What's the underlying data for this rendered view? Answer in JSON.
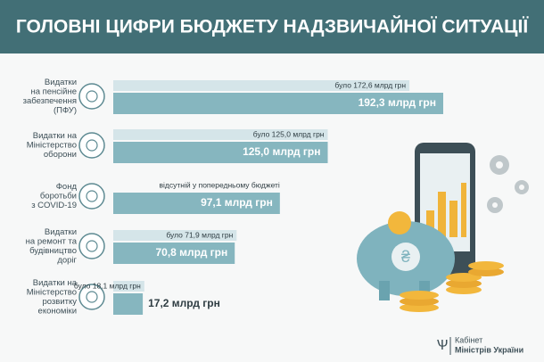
{
  "chart_data": {
    "type": "bar",
    "orientation": "horizontal",
    "title": "ГОЛОВНІ ЦИФРИ БЮДЖЕТУ НАДЗВИЧАЙНОЇ СИТУАЦІЇ",
    "categories": [
      [
        "Видатки",
        "на пенсійне",
        "забезпечення",
        "(ПФУ)"
      ],
      [
        "Видатки на",
        "Міністерство",
        "оборони"
      ],
      [
        "Фонд",
        "боротьби",
        "з COVID-19"
      ],
      [
        "Видатки",
        "на ремонт та",
        "будівництво",
        "доріг"
      ],
      [
        "Видатки на",
        "Міністерство",
        "розвитку",
        "економіки"
      ]
    ],
    "series": [
      {
        "color": "#d5e5e9",
        "values": [
          172.6,
          125.0,
          null,
          71.9,
          18.1
        ],
        "value_labels": [
          "було 172,6 млрд грн",
          "було 125,0 млрд грн",
          "відсутній у попередньому бюджеті",
          "було 71,9 млрд грн",
          "було 18,1 млрд грн"
        ]
      },
      {
        "color": "#86b6bf",
        "values": [
          192.3,
          125.0,
          97.1,
          70.8,
          17.2
        ],
        "value_labels": [
          "192,3 млрд грн",
          "125,0 млрд грн",
          "97,1 млрд грн",
          "70,8 млрд грн",
          "17,2 млрд грн"
        ]
      }
    ]
  },
  "footer": {
    "line1": "Кабінет",
    "line2": "Міністрів України"
  }
}
